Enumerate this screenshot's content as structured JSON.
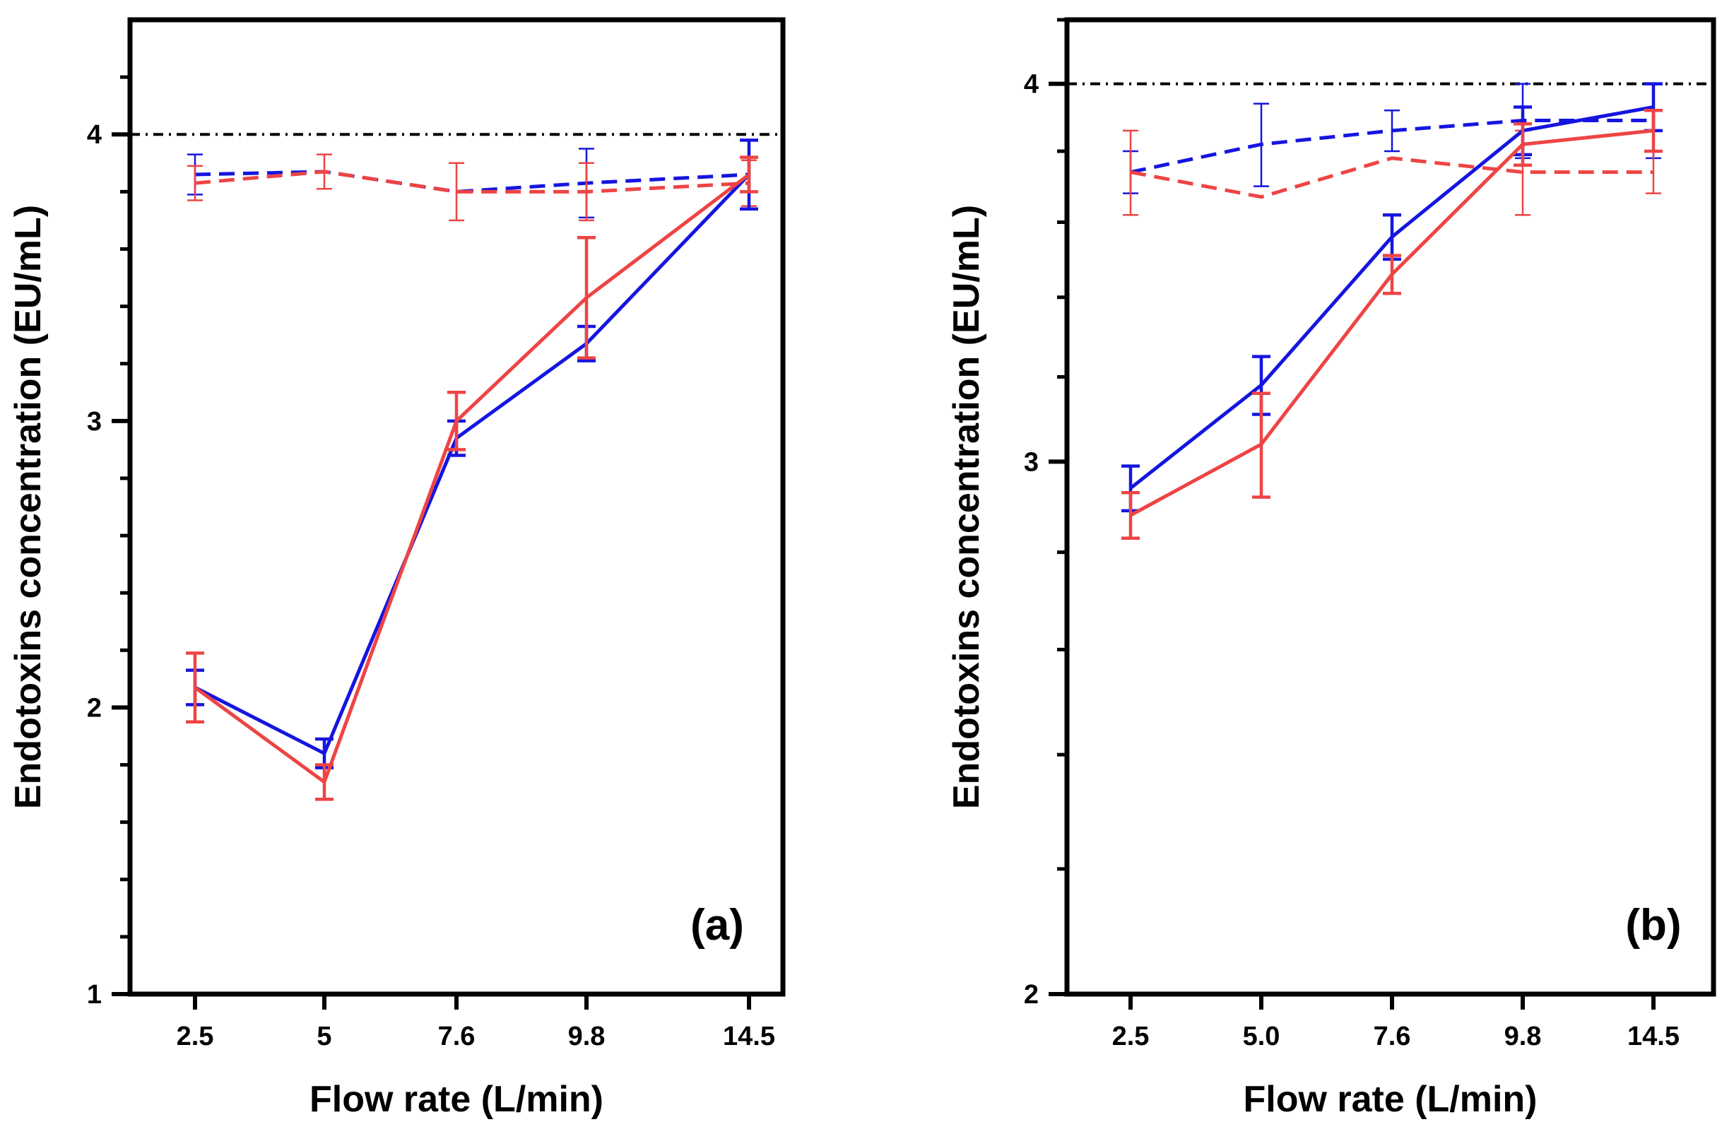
{
  "chart_data": [
    {
      "type": "line",
      "panel_label": "(a)",
      "xlabel": "Flow rate (L/min)",
      "ylabel": "Endotoxins concentration (EU/mL)",
      "categories": [
        "2.5",
        "5",
        "7.6",
        "9.8",
        "14.5"
      ],
      "y_scale": "linear",
      "ylim": [
        1,
        4.4
      ],
      "yticks_major": [
        1,
        2,
        3,
        4
      ],
      "ytick_labels": [
        "1",
        "2",
        "3",
        "4"
      ],
      "yticks_minor": [
        1.2,
        1.4,
        1.6,
        1.8,
        2.2,
        2.4,
        2.6,
        2.8,
        3.2,
        3.4,
        3.6,
        3.8,
        4.2
      ],
      "reference_line": {
        "y": 4,
        "style": "dash-dot",
        "color": "#000000"
      },
      "series": [
        {
          "name": "blue-solid",
          "color": "#1515e0",
          "dash": "solid",
          "values": [
            2.07,
            1.84,
            2.94,
            3.27,
            3.86
          ],
          "errors": [
            0.06,
            0.05,
            0.06,
            0.06,
            0.12
          ]
        },
        {
          "name": "red-solid",
          "color": "#ee4444",
          "dash": "solid",
          "values": [
            2.07,
            1.74,
            3.0,
            3.43,
            3.86
          ],
          "errors": [
            0.12,
            0.06,
            0.1,
            0.21,
            0.06
          ]
        },
        {
          "name": "blue-dashed",
          "color": "#1515e0",
          "dash": "dashed",
          "values": [
            3.86,
            3.87,
            3.8,
            3.83,
            3.86
          ],
          "errors": [
            0.07,
            0,
            0,
            0.12,
            0.06
          ]
        },
        {
          "name": "red-dashed",
          "color": "#ee4444",
          "dash": "dashed",
          "values": [
            3.83,
            3.87,
            3.8,
            3.8,
            3.83
          ],
          "errors": [
            0.06,
            0.06,
            0.1,
            0.1,
            0.08
          ]
        }
      ]
    },
    {
      "type": "line",
      "panel_label": "(b)",
      "xlabel": "Flow rate (L/min)",
      "ylabel": "Endotoxins concentration (EU/mL)",
      "categories": [
        "2.5",
        "5.0",
        "7.6",
        "9.8",
        "14.5"
      ],
      "y_scale": "log",
      "ylim": [
        2,
        4.2
      ],
      "yticks_major": [
        2,
        3,
        4
      ],
      "ytick_labels": [
        "2",
        "3",
        "4"
      ],
      "yticks_minor": [
        2.2,
        2.4,
        2.6,
        2.8,
        3.2,
        3.4,
        3.6,
        3.8,
        4.2
      ],
      "reference_line": {
        "y": 4,
        "style": "dash-dot",
        "color": "#000000"
      },
      "series": [
        {
          "name": "blue-solid",
          "color": "#1515e0",
          "dash": "solid",
          "values": [
            2.94,
            3.18,
            3.56,
            3.86,
            3.93
          ],
          "errors": [
            0.05,
            0.07,
            0.06,
            0.07,
            0.07
          ]
        },
        {
          "name": "red-solid",
          "color": "#ee4444",
          "dash": "solid",
          "values": [
            2.88,
            3.04,
            3.46,
            3.82,
            3.86
          ],
          "errors": [
            0.05,
            0.12,
            0.05,
            0.06,
            0.06
          ]
        },
        {
          "name": "blue-dashed",
          "color": "#1515e0",
          "dash": "dashed",
          "values": [
            3.74,
            3.82,
            3.86,
            3.89,
            3.89
          ],
          "errors": [
            0.06,
            0.12,
            0.06,
            0.11,
            0.11
          ]
        },
        {
          "name": "red-dashed",
          "color": "#ee4444",
          "dash": "dashed",
          "values": [
            3.74,
            3.67,
            3.78,
            3.74,
            3.74
          ],
          "errors": [
            0.12,
            0,
            0,
            0.12,
            0.06
          ]
        }
      ]
    }
  ]
}
